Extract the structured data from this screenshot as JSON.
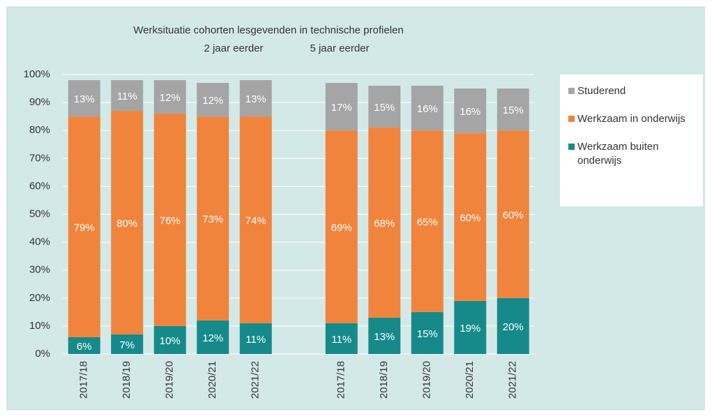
{
  "chart_data": {
    "type": "stacked_bar",
    "title": "Werksituatie cohorten lesgevenden in technische profielen",
    "annotations": [
      "2 jaar eerder",
      "5 jaar eerder"
    ],
    "categories": [
      "2017/18",
      "2018/19",
      "2019/20",
      "2020/21",
      "2021/22",
      null,
      "2017/18",
      "2018/19",
      "2019/20",
      "2020/21",
      "2021/22"
    ],
    "series": [
      {
        "name": "Werkzaam buiten onderwijs",
        "color": "#168a8a",
        "values": [
          6,
          7,
          10,
          12,
          11,
          null,
          11,
          13,
          15,
          19,
          20
        ],
        "value_labels": [
          "6%",
          "7%",
          "10%",
          "12%",
          "11%",
          null,
          "11%",
          "13%",
          "15%",
          "19%",
          "20%"
        ]
      },
      {
        "name": "Werkzaam in onderwijs",
        "color": "#f0843c",
        "values": [
          79,
          80,
          76,
          73,
          74,
          null,
          69,
          68,
          65,
          60,
          60
        ],
        "value_labels": [
          "79%",
          "80%",
          "76%",
          "73%",
          "74%",
          null,
          "69%",
          "68%",
          "65%",
          "60%",
          "60%"
        ]
      },
      {
        "name": "Studerend",
        "color": "#a5a5a5",
        "values": [
          13,
          11,
          12,
          12,
          13,
          null,
          17,
          15,
          16,
          16,
          15
        ],
        "value_labels": [
          "13%",
          "11%",
          "12%",
          "12%",
          "13%",
          null,
          "17%",
          "15%",
          "16%",
          "16%",
          "15%"
        ]
      }
    ],
    "ylim": [
      0,
      100
    ],
    "yticks": [
      {
        "value": 0,
        "label": "0%"
      },
      {
        "value": 10,
        "label": "10%"
      },
      {
        "value": 20,
        "label": "20%"
      },
      {
        "value": 30,
        "label": "30%"
      },
      {
        "value": 40,
        "label": "40%"
      },
      {
        "value": 50,
        "label": "50%"
      },
      {
        "value": 60,
        "label": "60%"
      },
      {
        "value": 70,
        "label": "70%"
      },
      {
        "value": 80,
        "label": "80%"
      },
      {
        "value": 90,
        "label": "90%"
      },
      {
        "value": 100,
        "label": "100%"
      }
    ],
    "grid": true,
    "legend": "right"
  }
}
